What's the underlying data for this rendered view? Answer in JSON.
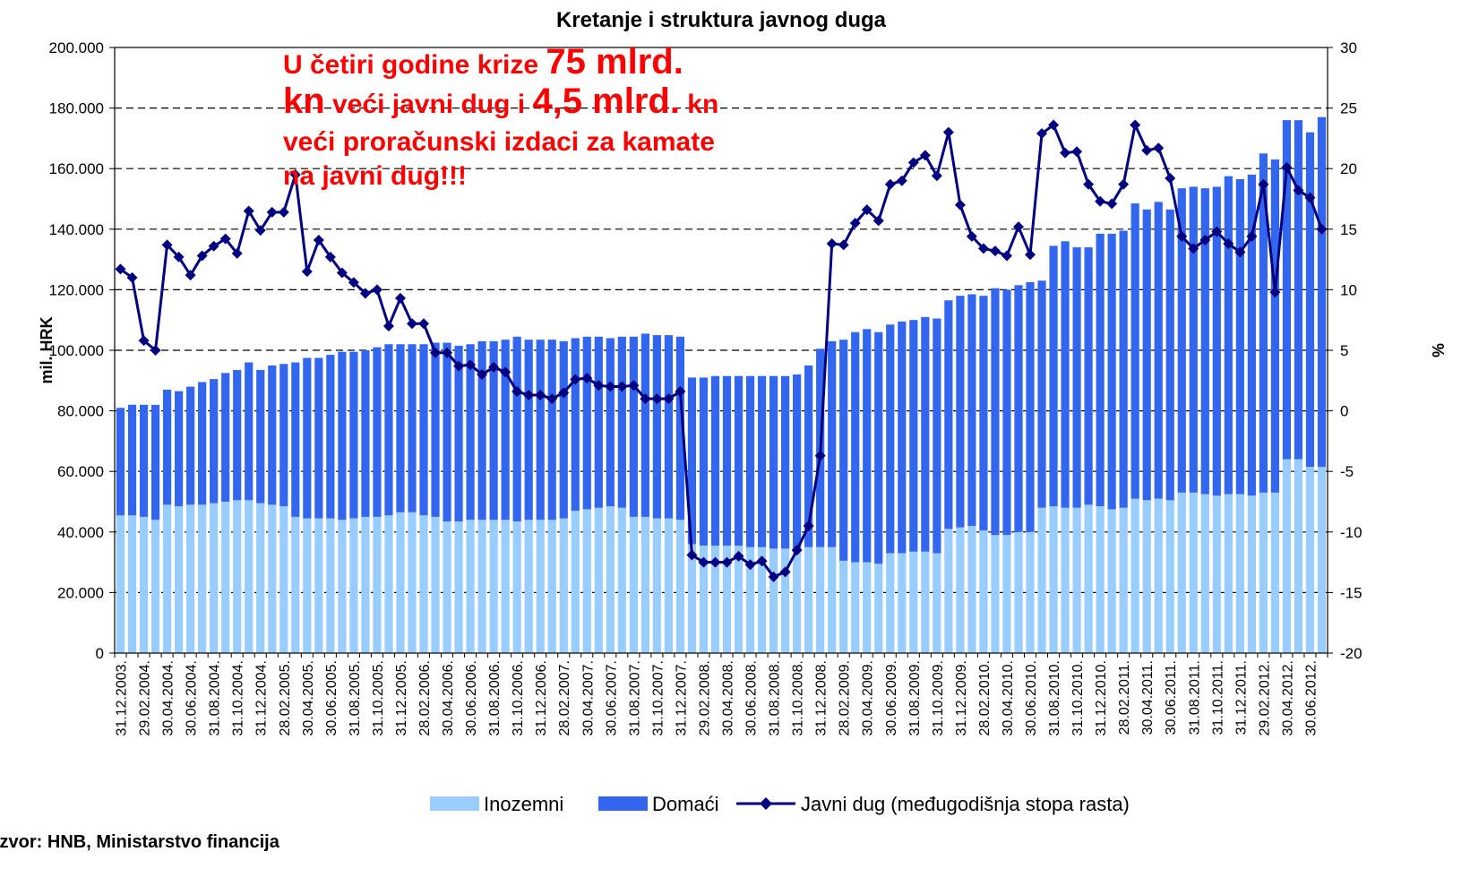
{
  "chart_data": {
    "type": "bar_line",
    "title": "Kretanje i struktura javnog duga",
    "annotation": [
      [
        {
          "text": "U četiri godine krize ",
          "emphasis": false
        },
        {
          "text": "75 mlrd.",
          "emphasis": true
        }
      ],
      [
        {
          "text": "kn",
          "emphasis": true
        },
        {
          "text": " veći javni dug i ",
          "emphasis": false
        },
        {
          "text": "4,5 mlrd.",
          "emphasis": true
        },
        {
          "text": " kn",
          "emphasis": false
        }
      ],
      [
        {
          "text": "veći proračunski izdaci za kamate",
          "emphasis": false
        }
      ],
      [
        {
          "text": "na javni dug!!!",
          "emphasis": false
        }
      ]
    ],
    "annotation_color": "#ff0000",
    "source": "Izvor: HNB, Ministarstvo financija",
    "ylabel": "mil. HRK",
    "y2label": "%",
    "categories": [
      "31.12.2003.",
      null,
      "29.02.2004.",
      null,
      "30.04.2004.",
      null,
      "30.06.2004.",
      null,
      "31.08.2004.",
      null,
      "31.10.2004.",
      null,
      "31.12.2004.",
      null,
      "28.02.2005.",
      null,
      "30.04.2005.",
      null,
      "30.06.2005.",
      null,
      "31.08.2005.",
      null,
      "31.10.2005.",
      null,
      "31.12.2005.",
      null,
      "28.02.2006.",
      null,
      "30.04.2006.",
      null,
      "30.06.2006.",
      null,
      "31.08.2006.",
      null,
      "31.10.2006.",
      null,
      "31.12.2006.",
      null,
      "28.02.2007.",
      null,
      "30.04.2007.",
      null,
      "30.06.2007.",
      null,
      "31.08.2007.",
      null,
      "31.10.2007.",
      null,
      "31.12.2007.",
      null,
      "29.02.2008.",
      null,
      "30.04.2008.",
      null,
      "30.06.2008.",
      null,
      "31.08.2008.",
      null,
      "31.10.2008.",
      null,
      "31.12.2008.",
      null,
      "28.02.2009.",
      null,
      "30.04.2009.",
      null,
      "30.06.2009.",
      null,
      "31.08.2009.",
      null,
      "31.10.2009.",
      null,
      "31.12.2009.",
      null,
      "28.02.2010.",
      null,
      "30.04.2010.",
      null,
      "30.06.2010.",
      null,
      "31.08.2010.",
      null,
      "31.10.2010.",
      null,
      "31.12.2010.",
      null,
      "28.02.2011.",
      null,
      "30.04.2011.",
      null,
      "30.06.2011.",
      null,
      "31.08.2011.",
      null,
      "31.10.2011.",
      null,
      "31.12.2011.",
      null,
      "29.02.2012.",
      null,
      "30.04.2012.",
      null,
      "30.06.2012.",
      null
    ],
    "series": [
      {
        "name": "Inozemni",
        "color": "#99ccff",
        "stack": true,
        "values": [
          45500,
          45500,
          45000,
          44000,
          49000,
          48500,
          49000,
          49000,
          49500,
          50000,
          50500,
          50500,
          49500,
          49000,
          48500,
          45000,
          44500,
          44500,
          44500,
          44000,
          44500,
          45000,
          45000,
          45500,
          46500,
          46500,
          45500,
          45000,
          43500,
          43500,
          44000,
          44000,
          44000,
          44000,
          43500,
          44000,
          44000,
          44000,
          44500,
          47000,
          47500,
          48000,
          48500,
          48000,
          45000,
          45000,
          44500,
          44500,
          44000,
          36000,
          35500,
          35500,
          35500,
          35500,
          35000,
          35000,
          34500,
          34500,
          34500,
          35000,
          35000,
          35000,
          30500,
          30000,
          30000,
          29500,
          33000,
          33000,
          33500,
          33500,
          33000,
          41000,
          41500,
          42000,
          40500,
          39000,
          39000,
          40000,
          40000,
          48000,
          48500,
          48000,
          48000,
          49000,
          48500,
          47500,
          48000,
          51000,
          50500,
          51000,
          50500,
          53000,
          53000,
          52500,
          52000,
          52500,
          52500,
          52000,
          53000,
          53000,
          64000,
          64000,
          61500,
          61500
        ]
      },
      {
        "name": "Domaći",
        "color": "#3366ee",
        "stack": true,
        "values": [
          35500,
          36500,
          37000,
          38000,
          38000,
          38000,
          39000,
          40500,
          41000,
          42500,
          43000,
          45500,
          44000,
          46000,
          47000,
          51000,
          53000,
          53000,
          54000,
          55500,
          55000,
          55000,
          56000,
          56500,
          55500,
          55500,
          56500,
          57500,
          59000,
          58000,
          58000,
          59000,
          59000,
          59500,
          61000,
          59500,
          59500,
          59500,
          58500,
          57000,
          57000,
          56500,
          55500,
          56500,
          59500,
          60500,
          60500,
          60500,
          60500,
          55000,
          55500,
          56000,
          56000,
          56000,
          56500,
          56500,
          57000,
          57000,
          57500,
          60000,
          65500,
          68000,
          73000,
          76000,
          77000,
          76500,
          75500,
          76500,
          76500,
          77500,
          77500,
          75500,
          76500,
          76500,
          77500,
          81500,
          81000,
          81500,
          82500,
          75000,
          86000,
          88000,
          86000,
          85000,
          90000,
          91000,
          91500,
          97500,
          96000,
          98000,
          96000,
          100500,
          101000,
          101000,
          102000,
          105000,
          104000,
          106000,
          112000,
          110000,
          112000,
          112000,
          110500,
          115500
        ]
      },
      {
        "name": "Javni dug (međugodišnja stopa rasta)",
        "color": "#000080",
        "axis": "y2",
        "values": [
          11.7,
          11,
          5.8,
          5,
          13.7,
          12.7,
          11.2,
          12.8,
          13.6,
          14.2,
          13,
          16.5,
          14.9,
          16.4,
          16.4,
          19.5,
          11.5,
          14.1,
          12.7,
          11.4,
          10.6,
          9.7,
          10,
          7,
          9.3,
          7.2,
          7.2,
          4.8,
          4.8,
          3.7,
          3.8,
          3,
          3.6,
          3.2,
          1.6,
          1.3,
          1.3,
          1,
          1.5,
          2.6,
          2.7,
          2.1,
          2,
          2,
          2.1,
          1,
          1,
          1,
          1.6,
          -11.9,
          -12.5,
          -12.5,
          -12.5,
          -12,
          -12.7,
          -12.4,
          -13.7,
          -13.3,
          -11.5,
          -9.5,
          -3.7,
          13.8,
          13.7,
          15.5,
          16.6,
          15.7,
          18.7,
          19,
          20.5,
          21.1,
          19.4,
          23,
          17,
          14.4,
          13.4,
          13.2,
          12.8,
          15.2,
          12.9,
          22.9,
          23.6,
          21.3,
          21.4,
          18.7,
          17.3,
          17.1,
          18.7,
          23.6,
          21.5,
          21.7,
          19.2,
          14.4,
          13.4,
          14.1,
          14.8,
          13.8,
          13.1,
          14.4,
          18.7,
          9.8,
          20.1,
          18.2,
          17.6,
          15
        ]
      }
    ],
    "ylim": [
      0,
      200000
    ],
    "yticks": [
      0,
      {
        "value": 20000,
        "label": "20.000"
      },
      {
        "value": 40000,
        "label": "40.000"
      },
      {
        "value": 60000,
        "label": "60.000"
      },
      {
        "value": 80000,
        "label": "80.000"
      },
      {
        "value": 100000,
        "label": "100.000"
      },
      {
        "value": 120000,
        "label": "120.000"
      },
      {
        "value": 140000,
        "label": "140.000"
      },
      {
        "value": 160000,
        "label": "160.000"
      },
      {
        "value": 180000,
        "label": "180.000"
      },
      {
        "value": 200000,
        "label": "200.000"
      }
    ],
    "y2lim": [
      -20,
      30
    ],
    "y2ticks": [
      -20,
      -15,
      -10,
      -5,
      0,
      5,
      10,
      15,
      20,
      25,
      30
    ],
    "grid": true
  }
}
